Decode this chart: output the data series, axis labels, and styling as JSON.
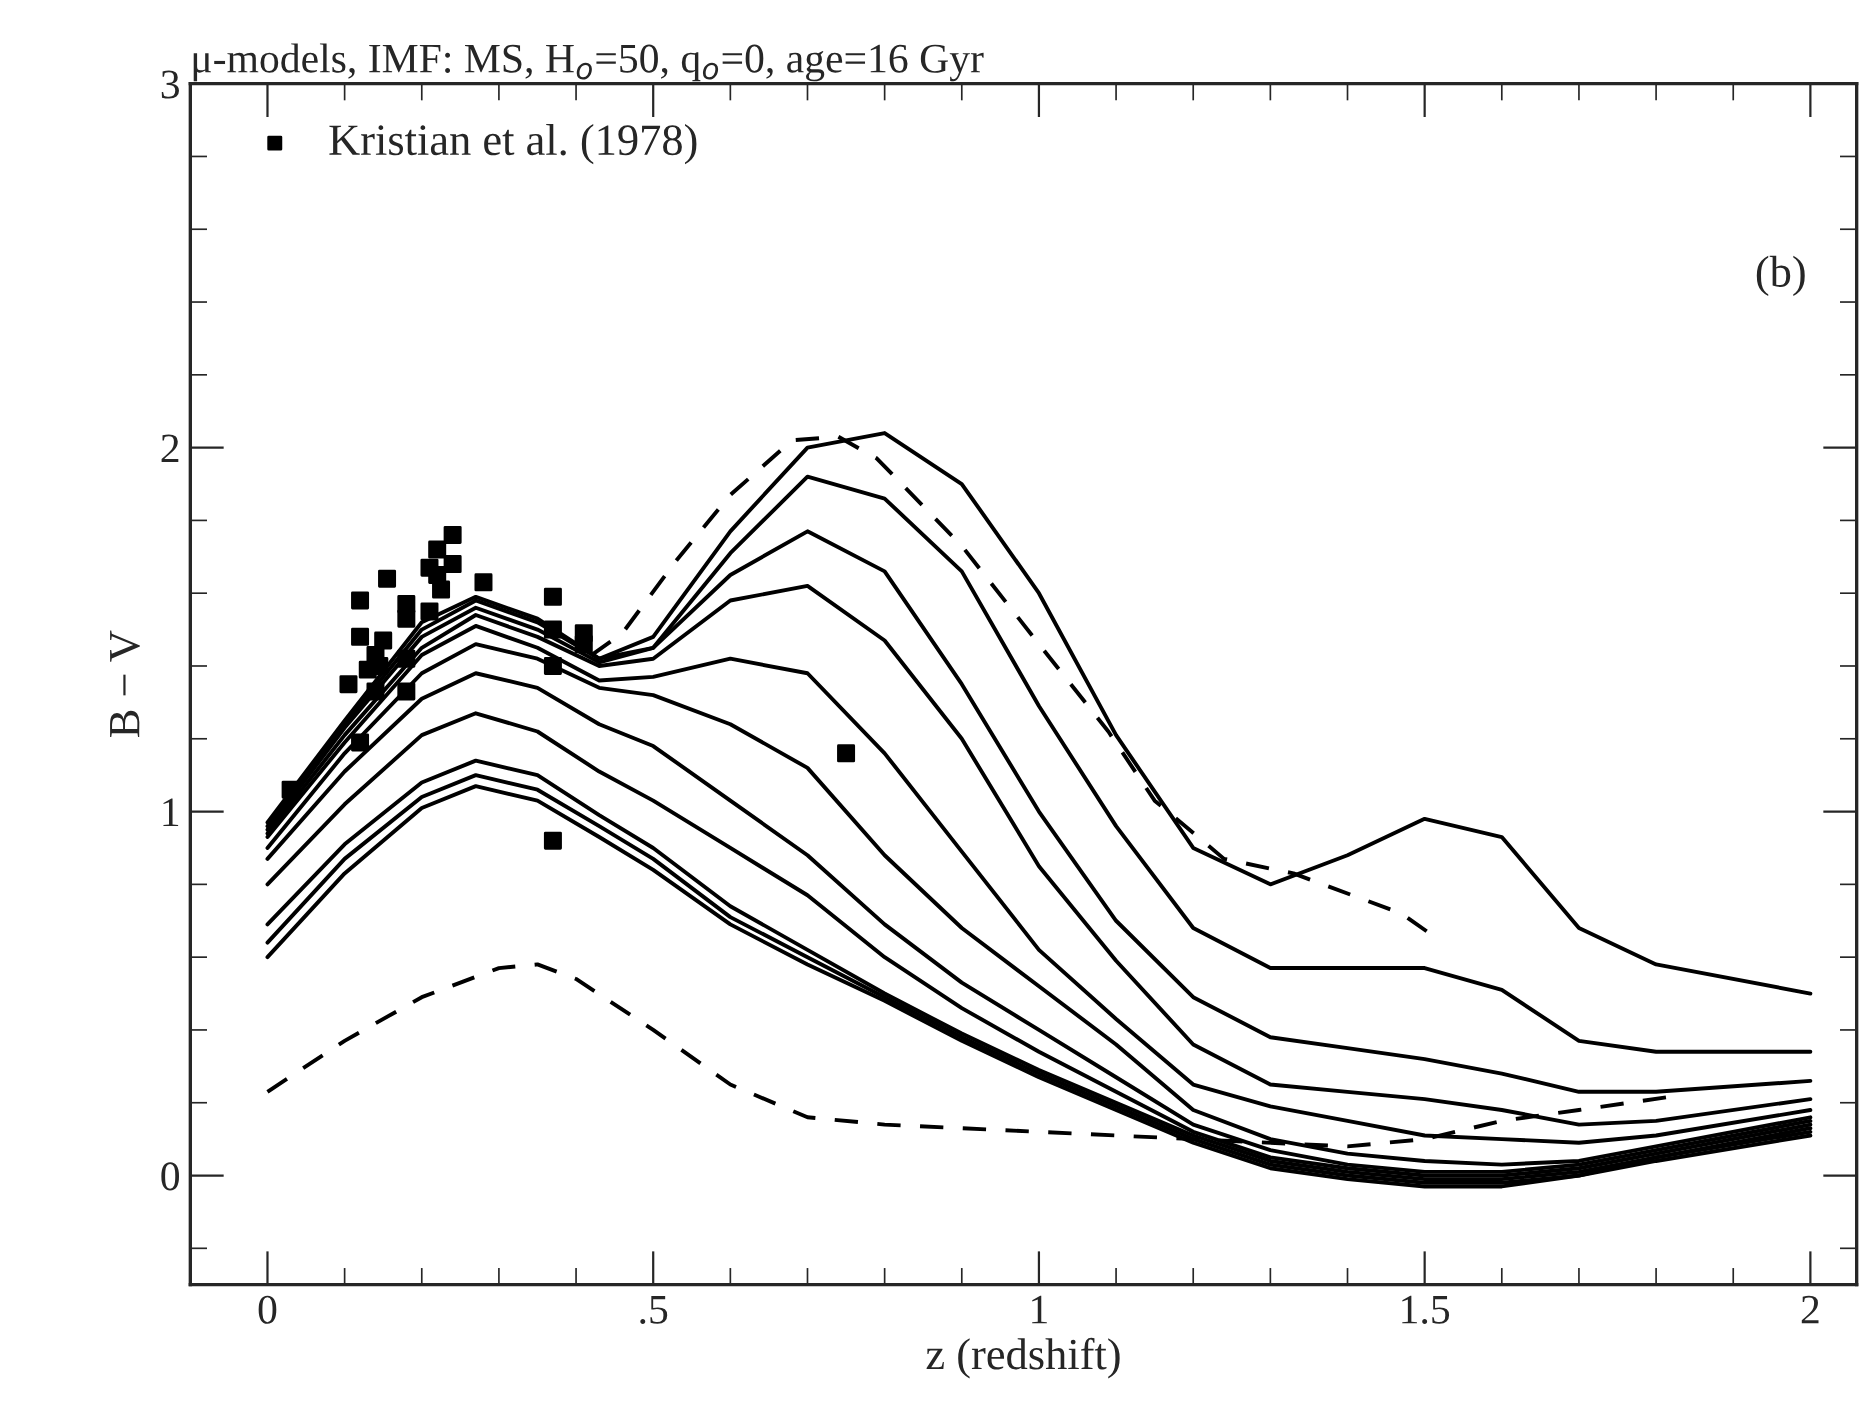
{
  "chart_data": {
    "type": "line",
    "title": "μ-models, IMF: MS, H$_{o}$=50, q$_{o}$=0, age=16 Gyr",
    "xlabel": "z (redshift)",
    "ylabel": "B − V",
    "annotations": [
      "(b)"
    ],
    "xlim": [
      -0.1,
      2.06
    ],
    "ylim": [
      -0.3,
      3
    ],
    "xticks": [
      0,
      {
        "value": 0.5,
        "label": ".5"
      },
      1,
      1.5,
      2
    ],
    "yticks": [
      0,
      1,
      2,
      3
    ],
    "legend": "top left",
    "grid": false,
    "x": [
      0,
      0.1,
      0.2,
      0.27,
      0.35,
      0.43,
      0.5,
      0.6,
      0.7,
      0.8,
      0.9,
      1.0,
      1.1,
      1.2,
      1.3,
      1.4,
      1.5,
      1.6,
      1.7,
      1.8,
      2.0
    ],
    "series": [
      {
        "line_style": "solid",
        "color": "#000000",
        "values": [
          0.97,
          1.25,
          1.52,
          1.59,
          1.53,
          1.42,
          1.48,
          1.77,
          2.0,
          2.04,
          1.9,
          1.6,
          1.21,
          0.9,
          0.8,
          0.88,
          0.98,
          0.93,
          0.68,
          0.58,
          0.5
        ]
      },
      {
        "line_style": "solid",
        "color": "#000000",
        "values": [
          0.96,
          1.24,
          1.5,
          1.58,
          1.52,
          1.42,
          1.45,
          1.71,
          1.92,
          1.86,
          1.66,
          1.29,
          0.96,
          0.68,
          0.57,
          0.57,
          0.57,
          0.51,
          0.37,
          0.34,
          0.34
        ]
      },
      {
        "line_style": "solid",
        "color": "#000000",
        "values": [
          0.95,
          1.23,
          1.48,
          1.56,
          1.5,
          1.41,
          1.45,
          1.65,
          1.77,
          1.66,
          1.35,
          1.0,
          0.7,
          0.49,
          0.38,
          0.35,
          0.32,
          0.28,
          0.23,
          0.23,
          0.26
        ]
      },
      {
        "line_style": "solid",
        "color": "#000000",
        "values": [
          0.94,
          1.21,
          1.45,
          1.54,
          1.48,
          1.4,
          1.42,
          1.58,
          1.62,
          1.47,
          1.2,
          0.85,
          0.59,
          0.36,
          0.25,
          0.23,
          0.21,
          0.18,
          0.14,
          0.15,
          0.21
        ]
      },
      {
        "line_style": "solid",
        "color": "#000000",
        "values": [
          0.93,
          1.19,
          1.43,
          1.51,
          1.45,
          1.36,
          1.37,
          1.42,
          1.38,
          1.16,
          0.89,
          0.62,
          0.43,
          0.25,
          0.19,
          0.15,
          0.11,
          0.1,
          0.09,
          0.11,
          0.18
        ]
      },
      {
        "line_style": "solid",
        "color": "#000000",
        "values": [
          0.9,
          1.16,
          1.38,
          1.46,
          1.42,
          1.34,
          1.32,
          1.24,
          1.12,
          0.88,
          0.68,
          0.52,
          0.36,
          0.18,
          0.1,
          0.06,
          0.04,
          0.03,
          0.04,
          0.08,
          0.16
        ]
      },
      {
        "line_style": "solid",
        "color": "#000000",
        "values": [
          0.87,
          1.11,
          1.31,
          1.38,
          1.34,
          1.24,
          1.18,
          1.03,
          0.88,
          0.69,
          0.53,
          0.4,
          0.27,
          0.14,
          0.07,
          0.03,
          0.01,
          0.01,
          0.03,
          0.07,
          0.15
        ]
      },
      {
        "line_style": "solid",
        "color": "#000000",
        "values": [
          0.8,
          1.02,
          1.21,
          1.27,
          1.22,
          1.11,
          1.03,
          0.9,
          0.77,
          0.6,
          0.46,
          0.34,
          0.23,
          0.12,
          0.05,
          0.02,
          0.0,
          0.0,
          0.02,
          0.06,
          0.14
        ]
      },
      {
        "line_style": "solid",
        "color": "#000000",
        "values": [
          0.69,
          0.91,
          1.08,
          1.14,
          1.1,
          0.99,
          0.9,
          0.74,
          0.62,
          0.5,
          0.39,
          0.29,
          0.2,
          0.11,
          0.04,
          0.01,
          -0.01,
          -0.01,
          0.01,
          0.05,
          0.13
        ]
      },
      {
        "line_style": "solid",
        "color": "#000000",
        "values": [
          0.64,
          0.87,
          1.04,
          1.1,
          1.06,
          0.96,
          0.87,
          0.71,
          0.6,
          0.49,
          0.38,
          0.28,
          0.19,
          0.1,
          0.03,
          0.0,
          -0.02,
          -0.02,
          0.0,
          0.05,
          0.12
        ]
      },
      {
        "line_style": "solid",
        "color": "#000000",
        "values": [
          0.6,
          0.83,
          1.01,
          1.07,
          1.03,
          0.93,
          0.84,
          0.69,
          0.58,
          0.48,
          0.37,
          0.27,
          0.18,
          0.09,
          0.02,
          -0.01,
          -0.03,
          -0.03,
          0.0,
          0.04,
          0.11
        ]
      },
      {
        "line_style": "dashed",
        "color": "#000000",
        "x": [
          0.42,
          0.46,
          0.53,
          0.6,
          0.68,
          0.74,
          0.79,
          0.9,
          1.0,
          1.09,
          1.15,
          1.24,
          1.33,
          1.47,
          1.51
        ],
        "values": [
          1.43,
          1.49,
          1.69,
          1.87,
          2.02,
          2.03,
          1.97,
          1.73,
          1.46,
          1.22,
          1.03,
          0.87,
          0.83,
          0.72,
          0.66
        ]
      },
      {
        "line_style": "dashed",
        "color": "#000000",
        "x": [
          0,
          0.1,
          0.2,
          0.3,
          0.35,
          0.4,
          0.5,
          0.6,
          0.7,
          0.8,
          0.9,
          1.0,
          1.2,
          1.4,
          1.5,
          1.6,
          1.7,
          1.83
        ],
        "values": [
          0.23,
          0.37,
          0.49,
          0.57,
          0.58,
          0.54,
          0.4,
          0.25,
          0.16,
          0.14,
          0.13,
          0.12,
          0.1,
          0.08,
          0.1,
          0.15,
          0.18,
          0.22
        ]
      },
      {
        "type": "scatter",
        "name": "Kristian et al. (1978)",
        "marker": "square",
        "color": "#000000",
        "x": [
          0.24,
          0.22,
          0.24,
          0.21,
          0.22,
          0.155,
          0.28,
          0.225,
          0.12,
          0.18,
          0.37,
          0.21,
          0.18,
          0.12,
          0.15,
          0.37,
          0.41,
          0.41,
          0.14,
          0.18,
          0.13,
          0.145,
          0.105,
          0.14,
          0.18,
          0.37,
          0.12,
          0.03,
          0.37,
          0.75
        ],
        "values": [
          1.76,
          1.72,
          1.68,
          1.67,
          1.65,
          1.64,
          1.63,
          1.61,
          1.58,
          1.57,
          1.59,
          1.55,
          1.53,
          1.48,
          1.47,
          1.5,
          1.49,
          1.46,
          1.43,
          1.42,
          1.39,
          1.4,
          1.35,
          1.33,
          1.33,
          1.4,
          1.19,
          1.06,
          0.92,
          1.16
        ]
      }
    ]
  }
}
